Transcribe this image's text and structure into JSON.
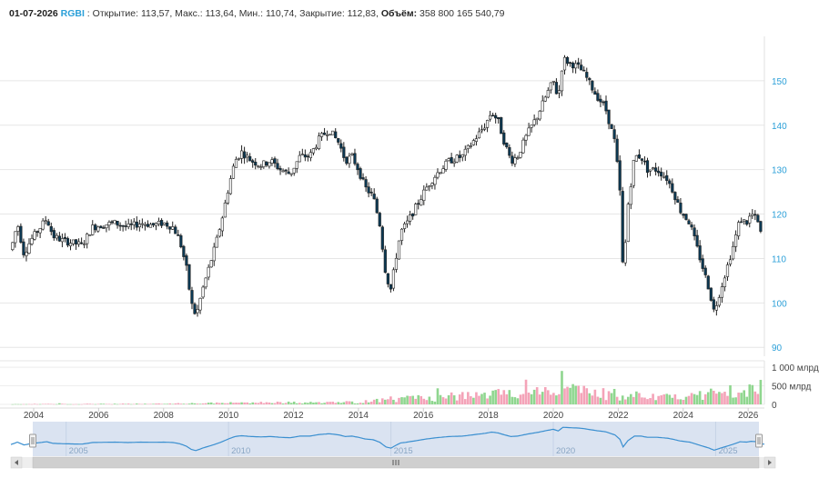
{
  "header": {
    "date": "01-07-2026",
    "ticker": "RGBI",
    "open_label": "Открытие:",
    "open": "113,57",
    "high_label": "Макс.:",
    "high": "113,64",
    "low_label": "Мин.:",
    "low": "110,74",
    "close_label": "Закрытие:",
    "close": "112,83",
    "volume_label": "Объём:",
    "volume": "358 800 165 540,79"
  },
  "colors": {
    "up_candle": "#ffffff",
    "down_candle": "#0b3954",
    "candle_outline": "#222222",
    "volume_up": "#8fd68f",
    "volume_down": "#f4a3b8",
    "axis_text": "#2a9fd8",
    "navigator_line": "#3a8fd0",
    "navigator_fill": "#d4deef"
  },
  "chart_data": {
    "type": "candlestick",
    "title": "",
    "price_axis": {
      "ticks": [
        90,
        100,
        110,
        120,
        130,
        140,
        150
      ],
      "range": [
        88,
        160
      ],
      "side": "right"
    },
    "volume_axis": {
      "ticks": [
        0,
        500,
        1000
      ],
      "tick_labels": [
        "0",
        "500 млрд",
        "1 000 млрд"
      ],
      "range": [
        0,
        1100
      ],
      "unit_note": "млрд"
    },
    "x_axis": {
      "range": [
        2003.3,
        2026.5
      ],
      "ticks": [
        "2004",
        "2006",
        "2008",
        "2010",
        "2012",
        "2014",
        "2016",
        "2018",
        "2020",
        "2022",
        "2024",
        "2026"
      ]
    },
    "navigator": {
      "ticks": [
        "2005",
        "2010",
        "2015",
        "2020",
        "2025"
      ],
      "range": [
        2003.3,
        2026.5
      ]
    },
    "price_path": [
      [
        2003.3,
        112
      ],
      [
        2003.5,
        118
      ],
      [
        2003.7,
        111
      ],
      [
        2003.9,
        114
      ],
      [
        2004.2,
        117
      ],
      [
        2004.4,
        119
      ],
      [
        2004.6,
        115
      ],
      [
        2004.9,
        114
      ],
      [
        2005.2,
        113.5
      ],
      [
        2005.5,
        113
      ],
      [
        2005.8,
        117
      ],
      [
        2006.1,
        117.5
      ],
      [
        2006.5,
        118
      ],
      [
        2006.9,
        117
      ],
      [
        2007.3,
        118
      ],
      [
        2007.7,
        117.5
      ],
      [
        2008.0,
        118
      ],
      [
        2008.3,
        117
      ],
      [
        2008.5,
        114
      ],
      [
        2008.7,
        108
      ],
      [
        2008.85,
        100
      ],
      [
        2009.0,
        97
      ],
      [
        2009.2,
        103
      ],
      [
        2009.4,
        108
      ],
      [
        2009.6,
        113
      ],
      [
        2009.8,
        119
      ],
      [
        2010.0,
        126
      ],
      [
        2010.2,
        132
      ],
      [
        2010.4,
        134
      ],
      [
        2010.7,
        132
      ],
      [
        2011.0,
        131
      ],
      [
        2011.3,
        132
      ],
      [
        2011.6,
        130
      ],
      [
        2011.9,
        129
      ],
      [
        2012.2,
        133
      ],
      [
        2012.5,
        133
      ],
      [
        2012.8,
        137
      ],
      [
        2013.1,
        139
      ],
      [
        2013.4,
        136
      ],
      [
        2013.6,
        132
      ],
      [
        2013.8,
        133
      ],
      [
        2014.0,
        130
      ],
      [
        2014.2,
        126
      ],
      [
        2014.45,
        124
      ],
      [
        2014.65,
        118
      ],
      [
        2014.85,
        106
      ],
      [
        2015.0,
        103
      ],
      [
        2015.15,
        110
      ],
      [
        2015.3,
        116
      ],
      [
        2015.5,
        118
      ],
      [
        2015.8,
        122
      ],
      [
        2016.1,
        126
      ],
      [
        2016.4,
        129
      ],
      [
        2016.8,
        132
      ],
      [
        2017.2,
        133
      ],
      [
        2017.5,
        136
      ],
      [
        2017.9,
        140
      ],
      [
        2018.1,
        143
      ],
      [
        2018.3,
        141
      ],
      [
        2018.5,
        136
      ],
      [
        2018.7,
        132
      ],
      [
        2018.9,
        133
      ],
      [
        2019.2,
        138
      ],
      [
        2019.5,
        142
      ],
      [
        2019.8,
        147
      ],
      [
        2020.0,
        150
      ],
      [
        2020.15,
        146
      ],
      [
        2020.3,
        155
      ],
      [
        2020.5,
        154
      ],
      [
        2020.8,
        153
      ],
      [
        2021.0,
        151
      ],
      [
        2021.3,
        147
      ],
      [
        2021.6,
        144
      ],
      [
        2021.9,
        136
      ],
      [
        2022.05,
        125
      ],
      [
        2022.15,
        106
      ],
      [
        2022.3,
        122
      ],
      [
        2022.5,
        133
      ],
      [
        2022.7,
        133
      ],
      [
        2022.9,
        130
      ],
      [
        2023.2,
        130
      ],
      [
        2023.5,
        128
      ],
      [
        2023.7,
        125
      ],
      [
        2023.9,
        121
      ],
      [
        2024.2,
        118
      ],
      [
        2024.4,
        113
      ],
      [
        2024.6,
        108
      ],
      [
        2024.8,
        103
      ],
      [
        2024.95,
        98
      ],
      [
        2025.15,
        103
      ],
      [
        2025.35,
        108
      ],
      [
        2025.55,
        113
      ],
      [
        2025.75,
        119
      ],
      [
        2025.95,
        118
      ],
      [
        2026.1,
        120
      ],
      [
        2026.25,
        119
      ],
      [
        2026.35,
        117
      ],
      [
        2026.45,
        113
      ]
    ],
    "volume_path": [
      [
        2003.3,
        10
      ],
      [
        2008.0,
        20
      ],
      [
        2009.5,
        40
      ],
      [
        2011.0,
        60
      ],
      [
        2012.5,
        55
      ],
      [
        2014.0,
        70
      ],
      [
        2015.0,
        160
      ],
      [
        2016.5,
        220
      ],
      [
        2018.0,
        300
      ],
      [
        2019.5,
        380
      ],
      [
        2020.2,
        550
      ],
      [
        2021.0,
        380
      ],
      [
        2022.0,
        300
      ],
      [
        2023.0,
        230
      ],
      [
        2024.0,
        260
      ],
      [
        2025.0,
        330
      ],
      [
        2025.8,
        450
      ],
      [
        2026.45,
        780
      ]
    ]
  }
}
